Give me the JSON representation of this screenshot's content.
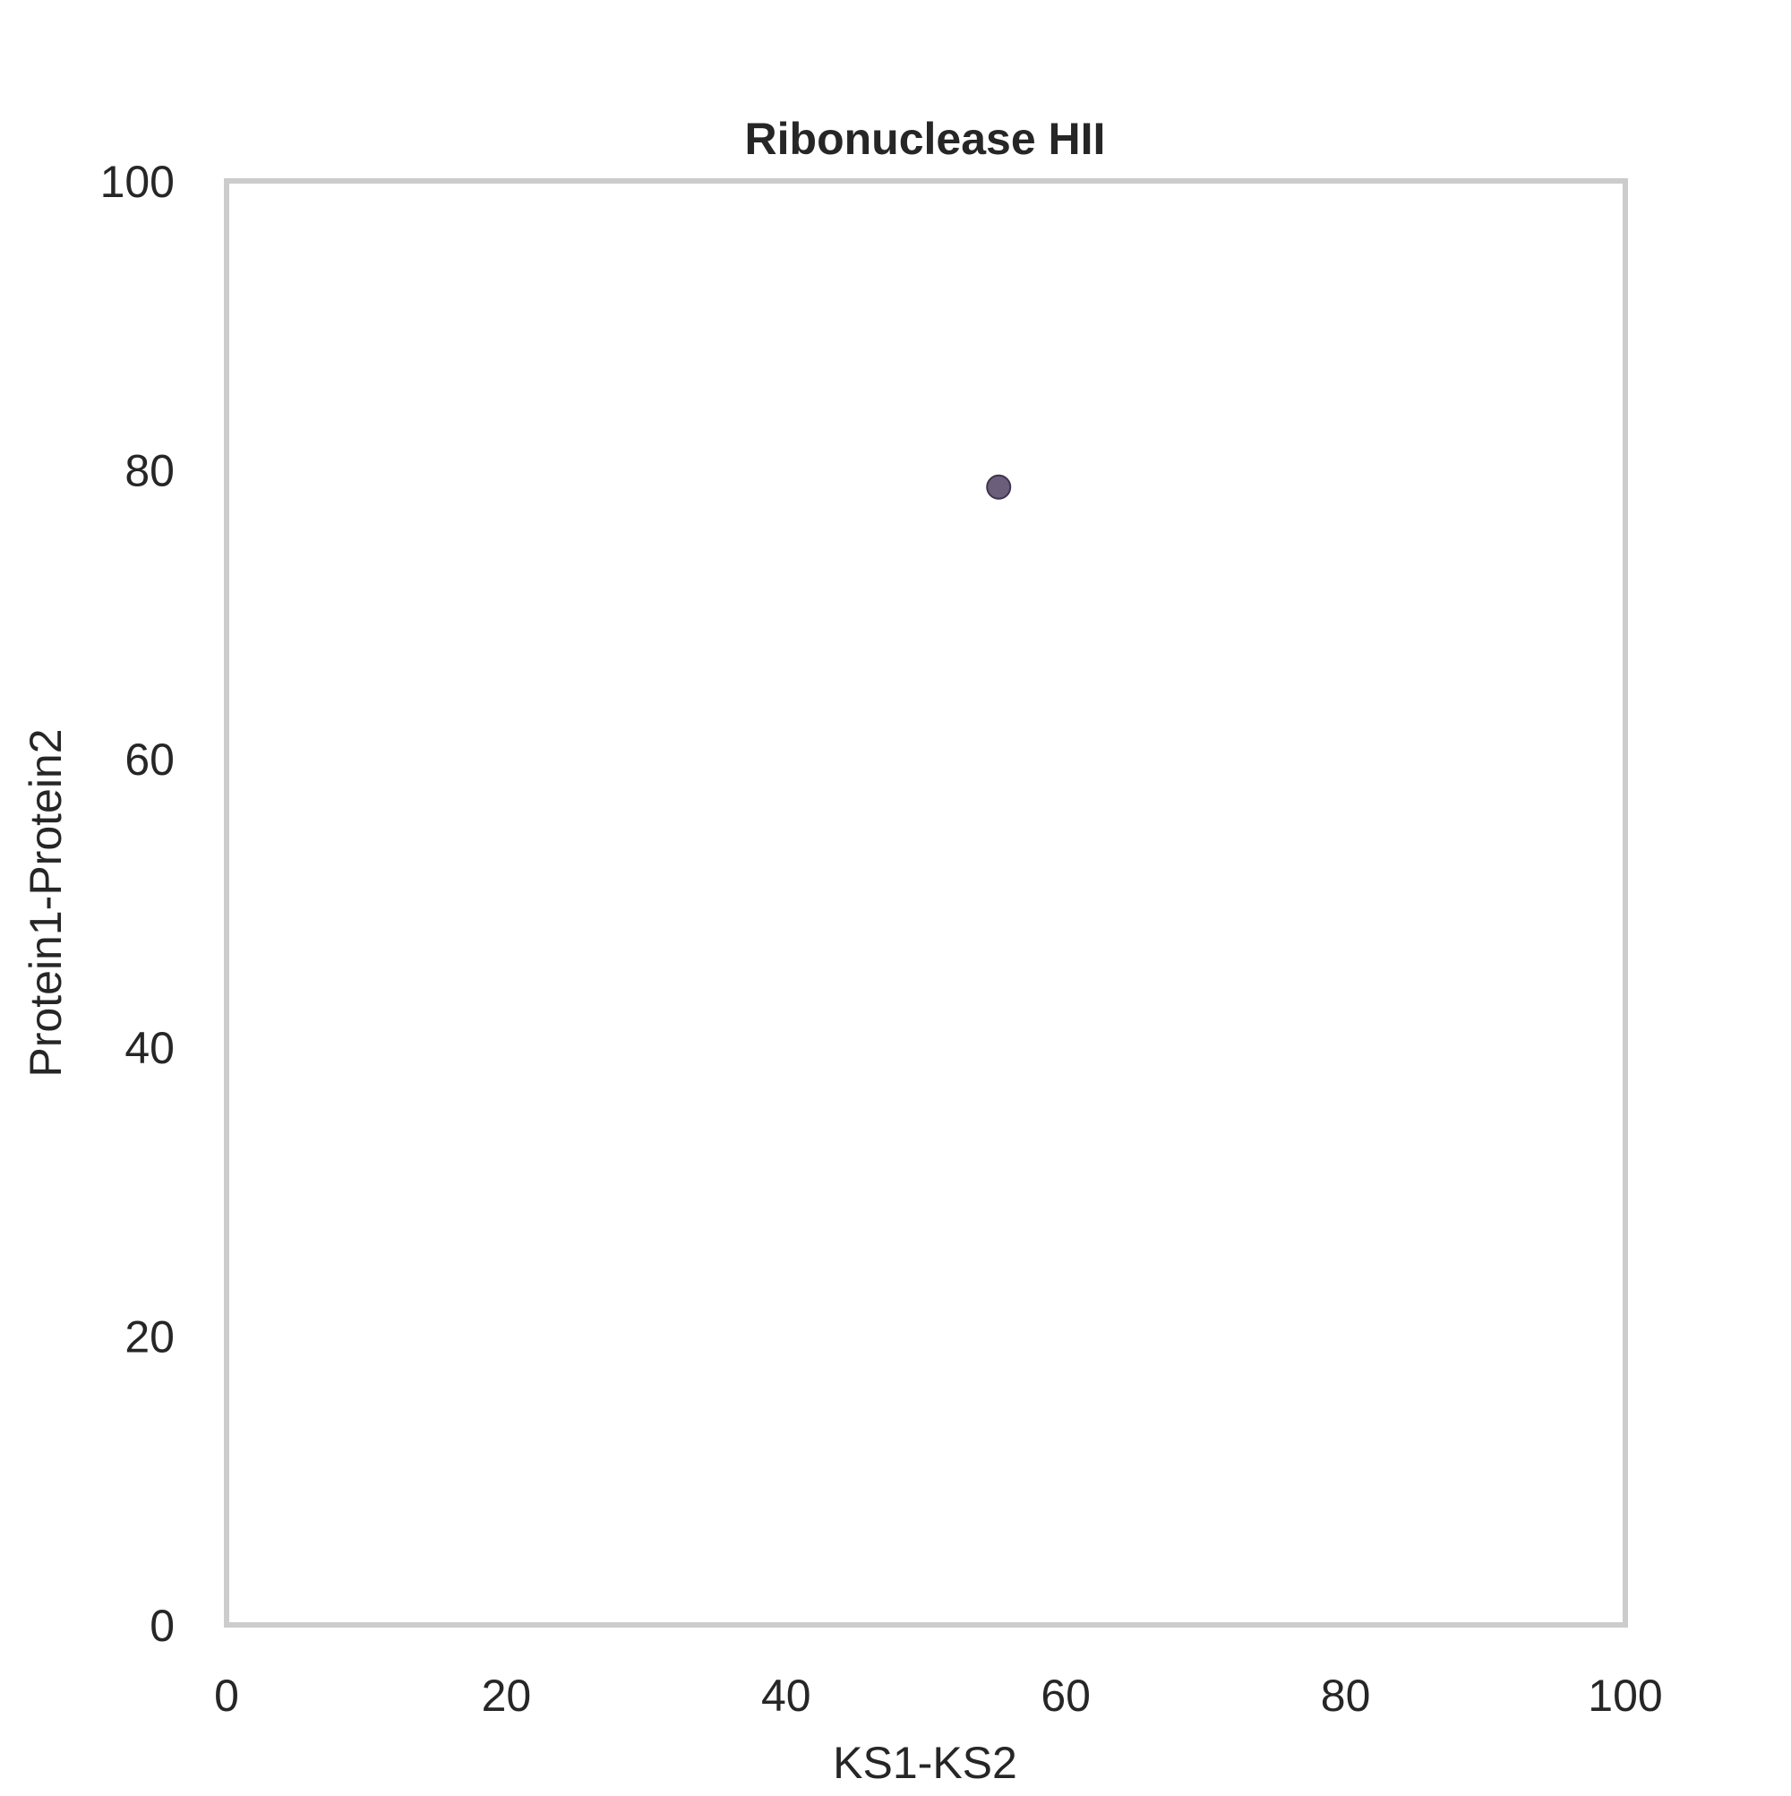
{
  "chart_data": {
    "type": "scatter",
    "title": "Ribonuclease HII",
    "xlabel": "KS1-KS2",
    "ylabel": "Protein1-Protein2",
    "xlim": [
      0,
      100
    ],
    "ylim": [
      0,
      100
    ],
    "xticks": [
      0,
      20,
      40,
      60,
      80,
      100
    ],
    "yticks": [
      0,
      20,
      40,
      60,
      80,
      100
    ],
    "grid": false,
    "points": [
      {
        "x": 55.2,
        "y": 78.8
      }
    ],
    "colors": {
      "point": "#5b4d6b",
      "frame": "#cccccc",
      "text": "#262626"
    }
  }
}
